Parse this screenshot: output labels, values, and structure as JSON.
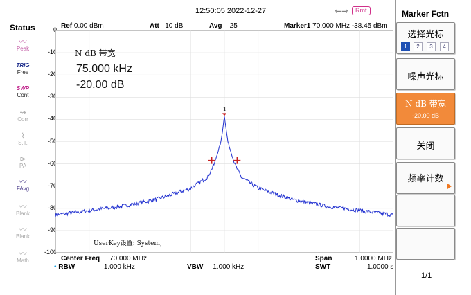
{
  "topbar": {
    "timestamp": "12:50:05 2022-12-27",
    "usb_icon": "usb-icon",
    "remote_label": "Rmt"
  },
  "status": {
    "title": "Status",
    "items": [
      {
        "top": "Peak",
        "icon": "peak-icon"
      },
      {
        "top": "TRIG",
        "bottom": "Free"
      },
      {
        "top": "SWP",
        "bottom": "Cont"
      },
      {
        "top": "Corr",
        "icon": "corr-icon"
      },
      {
        "top": "S.T.",
        "icon": "st-icon"
      },
      {
        "top": "PA",
        "icon": "pa-icon"
      },
      {
        "top": "FAvg",
        "icon": "favg-icon"
      },
      {
        "top": "Blank",
        "icon": "blank-icon"
      },
      {
        "top": "Blank",
        "icon": "blank-icon"
      },
      {
        "top": "Math",
        "icon": "math-icon"
      }
    ]
  },
  "header": {
    "ref_label": "Ref",
    "ref_value": "0.00 dBm",
    "att_label": "Att",
    "att_value": "10 dB",
    "avg_label": "Avg",
    "avg_value": "25",
    "marker_label": "Marker1",
    "marker_value": "70.000 MHz  -38.45 dBm"
  },
  "annotation": {
    "ndb_label": "N dB 带宽",
    "bandwidth": "75.000 kHz",
    "ndb_value": "-20.00 dB",
    "userkey": "UserKey设置:   System,",
    "marker_num": "1"
  },
  "footer": {
    "center_label": "Center Freq",
    "center_value": "70.000 MHz",
    "span_label": "Span",
    "span_value": "1.0000 MHz",
    "rbw_label": "RBW",
    "rbw_value": "1.000 kHz",
    "vbw_label": "VBW",
    "vbw_value": "1.000 kHz",
    "swt_label": "SWT",
    "swt_value": "1.0000 s"
  },
  "chart_data": {
    "type": "line",
    "y_ticks": [
      "0",
      "-10",
      "-20",
      "-30",
      "-40",
      "-50",
      "-60",
      "-70",
      "-80",
      "-90",
      "-100"
    ],
    "ylim": [
      -100,
      0
    ],
    "xlim": [
      69.5,
      70.5
    ],
    "grid": true,
    "trace_color": "#2030d0",
    "series": [
      {
        "x": [
          69.5,
          69.6,
          69.7,
          69.8,
          69.9,
          69.95,
          69.97,
          69.99,
          70.0,
          70.01,
          70.03,
          70.05,
          70.1,
          70.2,
          70.3,
          70.4,
          70.5
        ],
        "values": [
          -83,
          -81,
          -79,
          -76,
          -71,
          -66,
          -60,
          -50,
          -38.5,
          -50,
          -60,
          -66,
          -71,
          -76,
          -79,
          -81,
          -83
        ]
      }
    ],
    "markers": [
      {
        "x": 70.0,
        "y": -38.45,
        "label": "1"
      },
      {
        "x": 69.9625,
        "y": -58.45
      },
      {
        "x": 70.0375,
        "y": -58.45
      }
    ]
  },
  "softkeys": {
    "title": "Marker Fctn",
    "select_marker": "选择光标",
    "marker_numbers": [
      "1",
      "2",
      "3",
      "4"
    ],
    "noise_marker": "噪声光标",
    "ndb_bw": "N dB 带宽",
    "ndb_bw_value": "-20.00 dB",
    "off": "关闭",
    "freq_count": "频率计数",
    "page": "1/1"
  },
  "colors": {
    "accent": "#f28a3a",
    "trace": "#2030d0",
    "marker": "#c82020"
  }
}
